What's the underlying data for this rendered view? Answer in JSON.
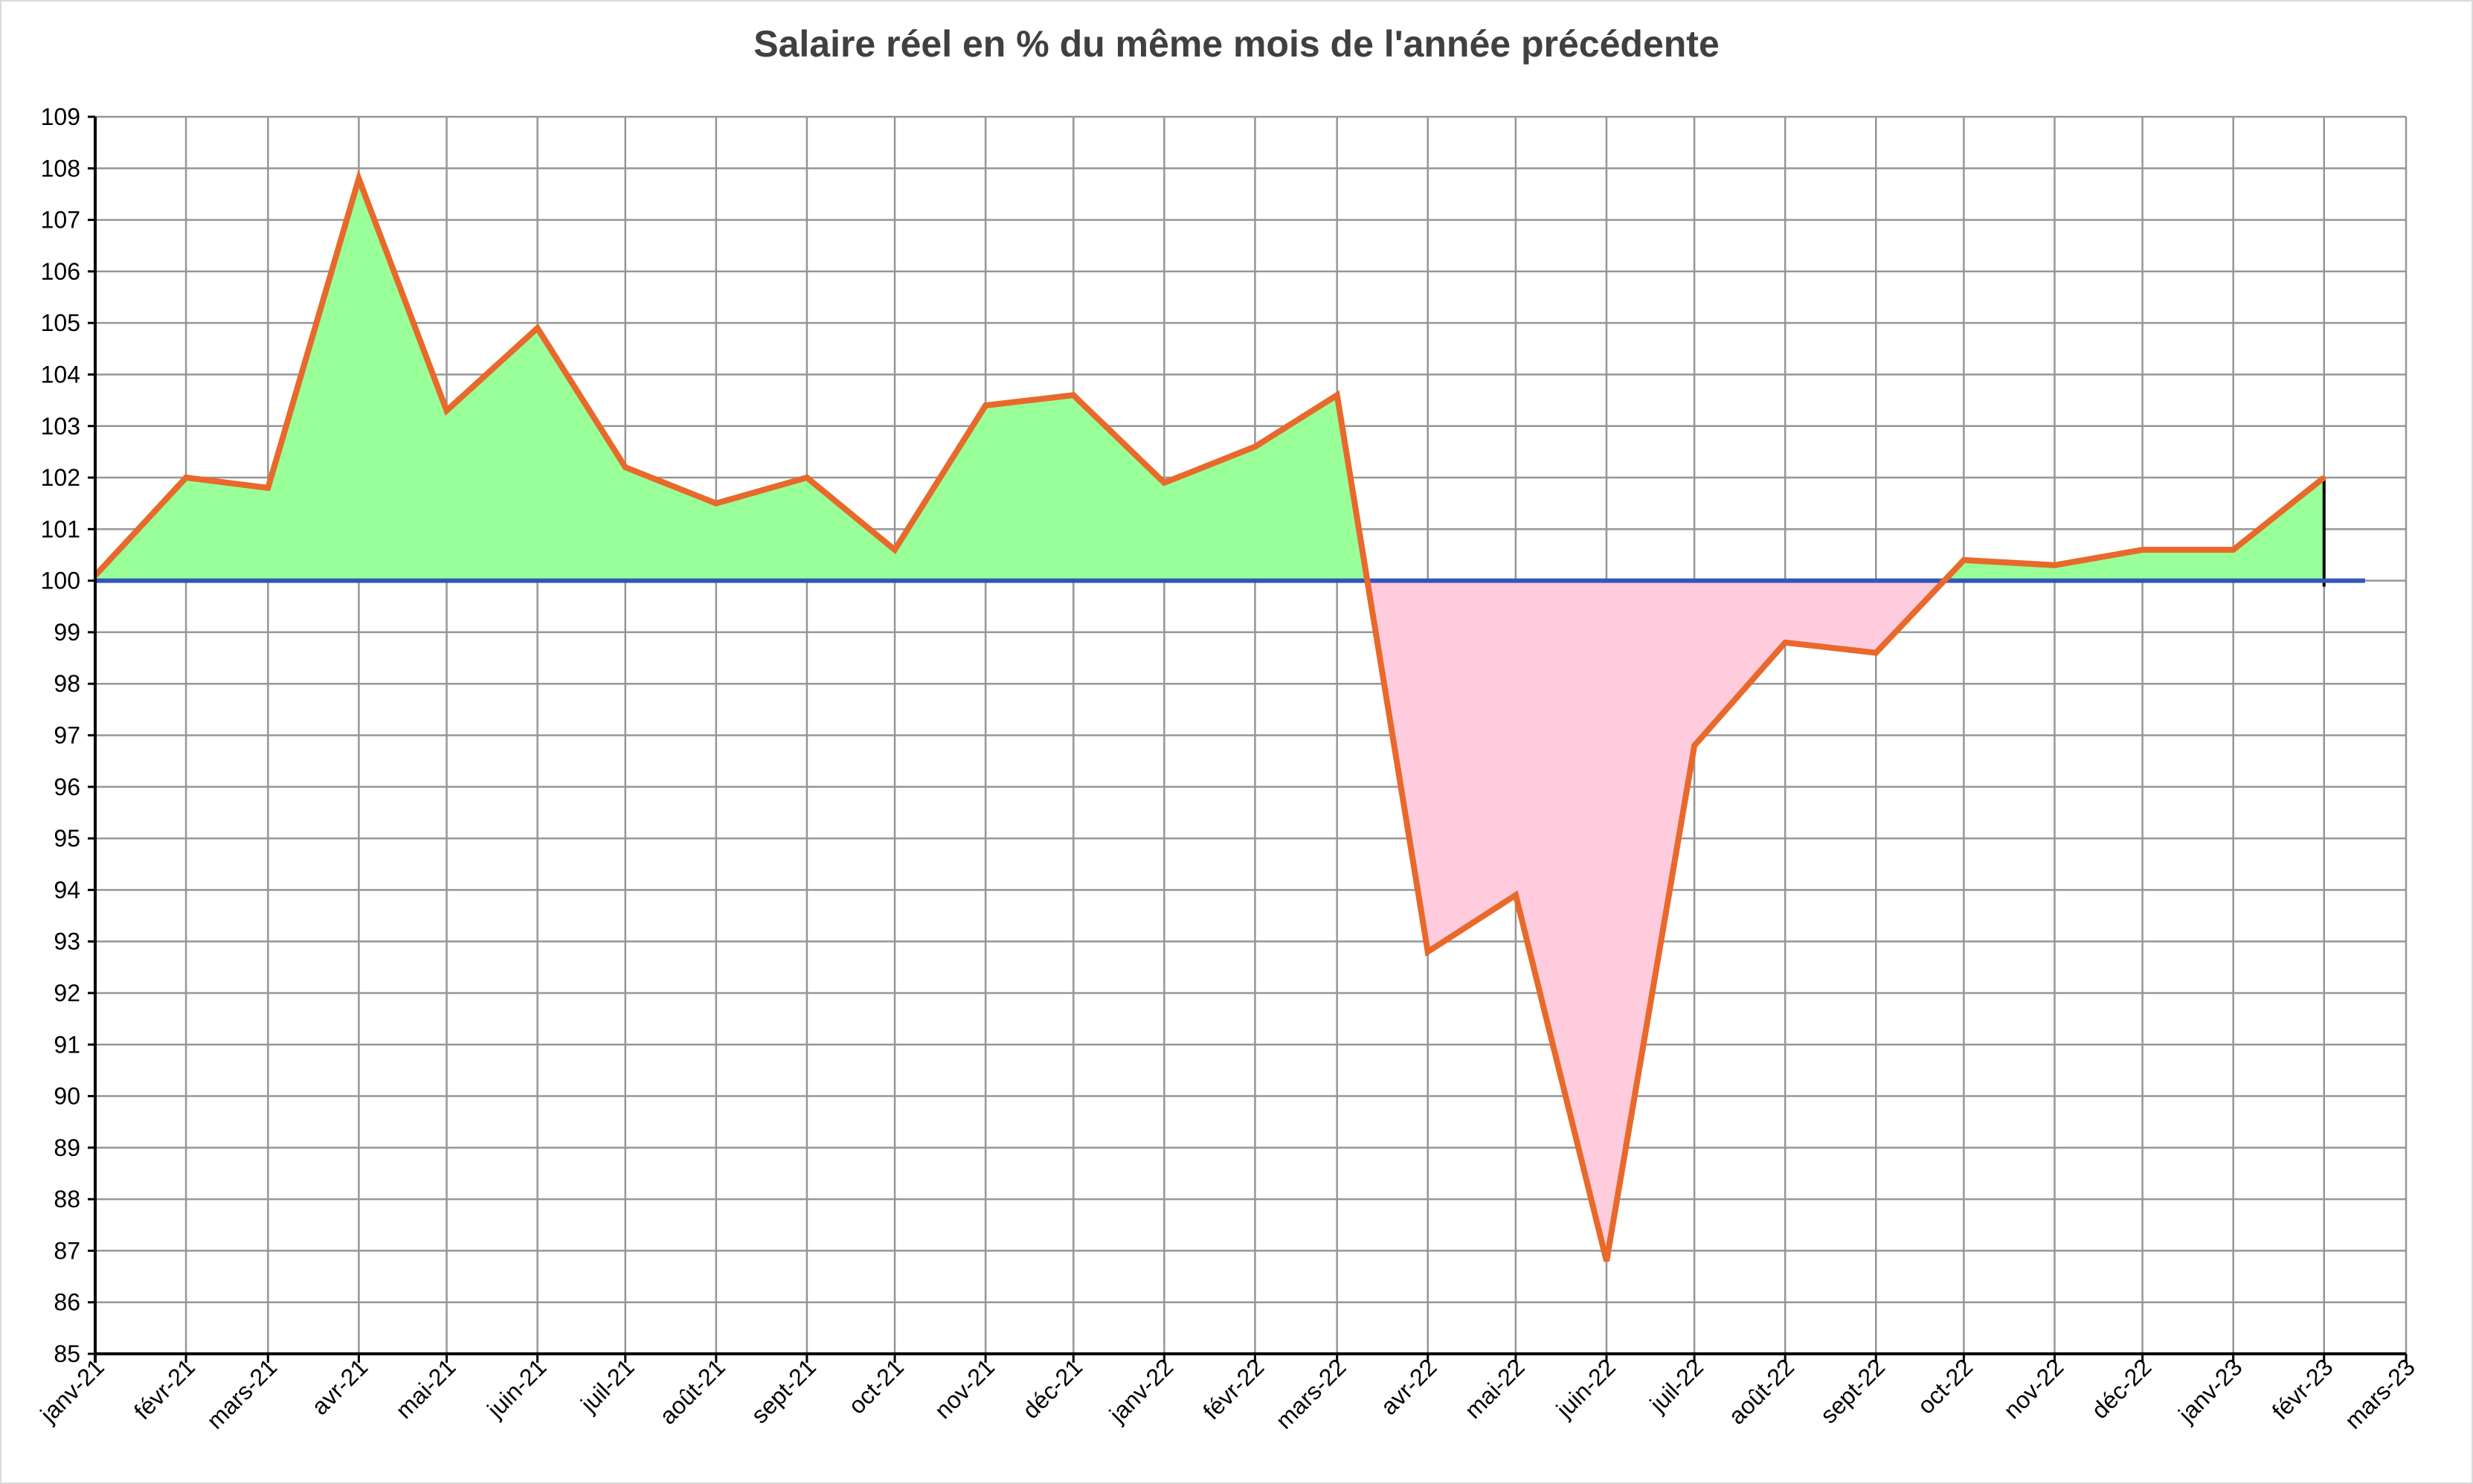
{
  "chart_data": {
    "type": "area",
    "title": "Salaire réel en % du même mois de l'année précédente",
    "xlabel": "",
    "ylabel": "",
    "ylim": [
      85,
      109
    ],
    "y_ticks": [
      85,
      86,
      87,
      88,
      89,
      90,
      91,
      92,
      93,
      94,
      95,
      96,
      97,
      98,
      99,
      100,
      101,
      102,
      103,
      104,
      105,
      106,
      107,
      108,
      109
    ],
    "x_ticks": [
      "janv-21",
      "févr-21",
      "mars-21",
      "avr-21",
      "mai-21",
      "juin-21",
      "juil-21",
      "août-21",
      "sept-21",
      "oct-21",
      "nov-21",
      "déc-21",
      "janv-22",
      "févr-22",
      "mars-22",
      "avr-22",
      "mai-22",
      "juin-22",
      "juil-22",
      "août-22",
      "sept-22",
      "oct-22",
      "nov-22",
      "déc-22",
      "janv-23",
      "févr-23",
      "mars-23"
    ],
    "baseline": 100,
    "grid": true,
    "legend": "none",
    "colors": {
      "line": "#e8692a",
      "above_fill": "#99ff99",
      "below_fill": "#ffccdd",
      "baseline": "#3355bb",
      "grid": "#969696"
    },
    "series": [
      {
        "x": [
          "2021-01-01",
          "2021-02-01",
          "2021-03-01",
          "2021-04-01",
          "2021-05-01",
          "2021-06-01",
          "2021-07-01",
          "2021-08-01",
          "2021-09-01",
          "2021-10-01",
          "2021-11-01",
          "2021-12-01",
          "2022-01-01",
          "2022-02-01",
          "2022-03-01",
          "2022-04-01",
          "2022-05-01",
          "2022-06-01",
          "2022-07-01",
          "2022-08-01",
          "2022-09-01",
          "2022-10-01",
          "2022-11-01",
          "2022-12-01",
          "2023-01-01",
          "2023-02-01"
        ],
        "values": [
          100.1,
          102.0,
          101.8,
          107.8,
          103.3,
          104.9,
          102.2,
          101.5,
          102.0,
          100.6,
          103.4,
          103.6,
          101.9,
          102.6,
          103.6,
          92.8,
          93.9,
          86.8,
          96.8,
          98.8,
          98.6,
          100.4,
          100.3,
          100.6,
          100.6,
          102.0
        ]
      }
    ]
  }
}
